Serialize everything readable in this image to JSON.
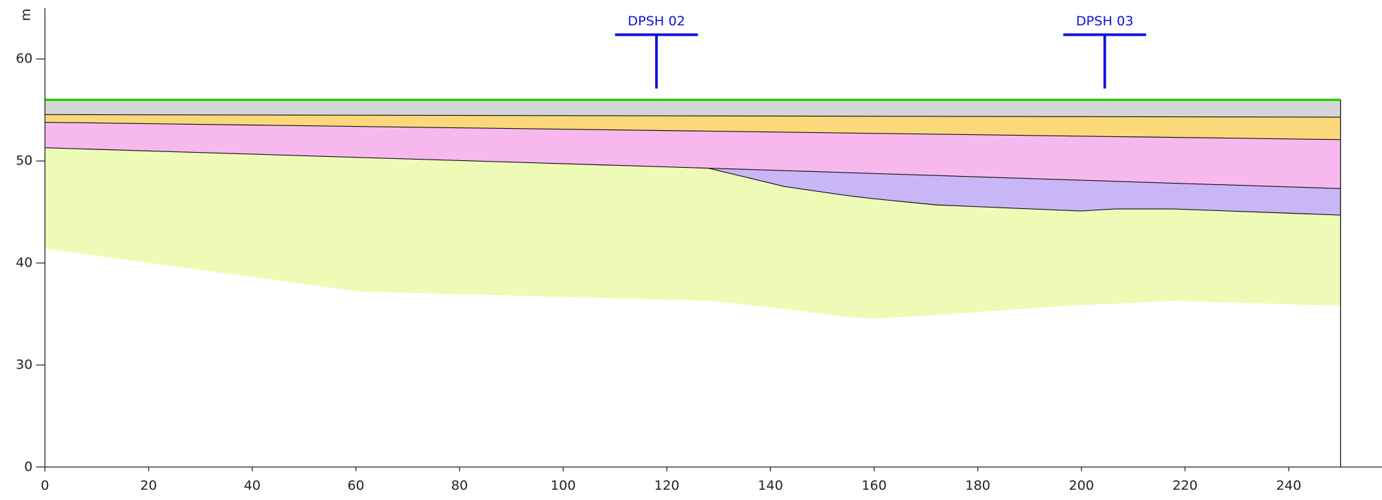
{
  "chart_data": {
    "type": "section",
    "y_unit": "m",
    "xlim": [
      0,
      258
    ],
    "xticks": [
      0,
      20,
      40,
      60,
      80,
      100,
      120,
      140,
      160,
      180,
      200,
      220,
      240
    ],
    "ylim": [
      0,
      65
    ],
    "ybreak": [
      0,
      20
    ],
    "yticks": [
      0,
      30,
      40,
      50,
      60
    ],
    "ground": {
      "color": "#22cc00",
      "x": [
        0,
        250
      ],
      "values": [
        56,
        56
      ]
    },
    "layers": [
      {
        "color": "#d6d6d6",
        "x": [
          0,
          250
        ],
        "top": [
          56,
          56
        ],
        "bottom": [
          54.55,
          54.3
        ]
      },
      {
        "color": "#fbd97a",
        "x": [
          0,
          250
        ],
        "top": [
          54.55,
          54.3
        ],
        "bottom": [
          53.8,
          52.1
        ]
      },
      {
        "color": "#f7b8ee",
        "x": [
          0,
          128,
          250
        ],
        "top": [
          53.8,
          52.93,
          52.1
        ],
        "bottom": [
          51.3,
          49.3,
          47.3
        ]
      },
      {
        "color": "#c9b6f6",
        "x": [
          128,
          142.7,
          154.9,
          171.9,
          199.8,
          206.6,
          217.6,
          250
        ],
        "top": [
          49.3,
          49.06,
          48.86,
          48.58,
          48.12,
          48.01,
          47.83,
          47.3
        ],
        "bottom": [
          49.3,
          47.5,
          46.6,
          45.7,
          45.1,
          45.3,
          45.3,
          44.7
        ]
      },
      {
        "color": "#eefbb6",
        "x": [
          0,
          60.8,
          128,
          142.7,
          154.9,
          160,
          171.9,
          199.8,
          206.6,
          217.6,
          250
        ],
        "top": [
          51.3,
          50.35,
          49.3,
          47.5,
          46.6,
          46.3,
          45.7,
          45.1,
          45.3,
          45.3,
          44.7
        ],
        "bottom": [
          41.4,
          37.2,
          36.3,
          35.5,
          34.7,
          34.55,
          34.9,
          35.9,
          36.0,
          36.3,
          35.8
        ]
      }
    ],
    "boreholes": [
      {
        "label": "DPSH 02",
        "x": 118,
        "color": "#1010e0"
      },
      {
        "label": "DPSH 03",
        "x": 204.5,
        "color": "#1010e0"
      }
    ]
  }
}
